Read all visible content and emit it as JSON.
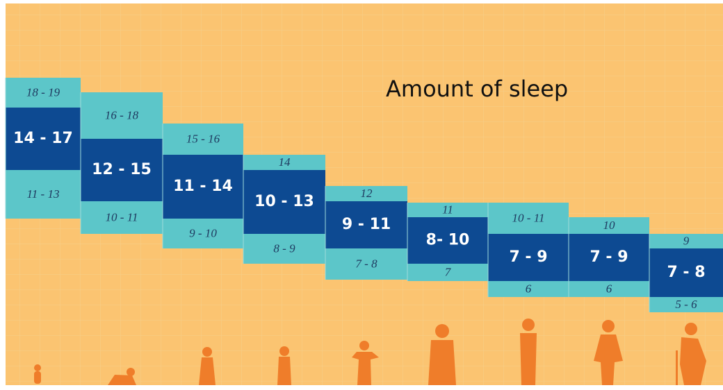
{
  "title": "Amount of sleep",
  "columns": [
    {
      "upper": "18 - 19",
      "main": "14 - 17",
      "lower": "11 - 13"
    },
    {
      "upper": "16 - 18",
      "main": "12 - 15",
      "lower": "10 - 11"
    },
    {
      "upper": "15 - 16",
      "main": "11 - 14",
      "lower": "9 - 10"
    },
    {
      "upper": "14",
      "main": "10 - 13",
      "lower": "8 - 9"
    },
    {
      "upper": "12",
      "main": "9 - 11",
      "lower": "7 - 8"
    },
    {
      "upper": "11",
      "main": "8- 10",
      "lower": "7"
    },
    {
      "upper": "10 - 11",
      "main": "7 - 9",
      "lower": "6"
    },
    {
      "upper": "10",
      "main": "7 - 9",
      "lower": "6"
    },
    {
      "upper": "9",
      "main": "7 - 8",
      "lower": "5 - 6"
    }
  ]
}
